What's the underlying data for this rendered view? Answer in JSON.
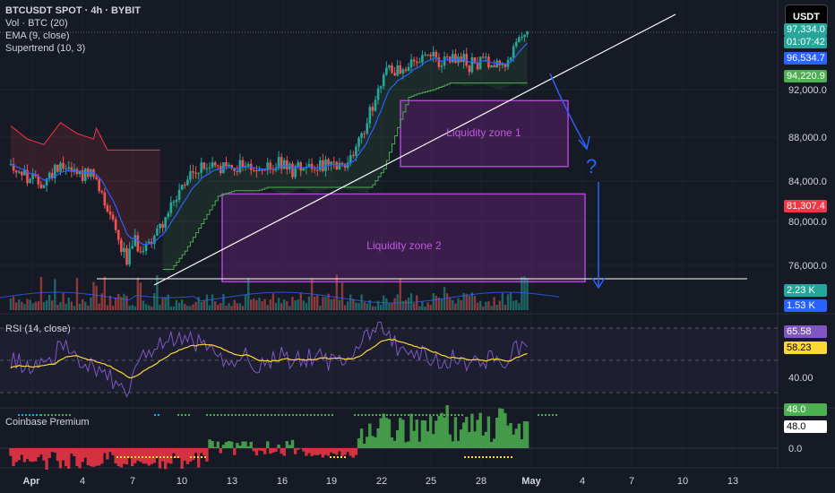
{
  "header": {
    "symbol": "BTCUSDT SPOT · 4h · BYBIT",
    "ind_vol": "Vol · BTC (20)",
    "ind_ema": "EMA (9, close)",
    "ind_supertrend": "Supertrend (10, 3)",
    "currency": "USDT"
  },
  "colors": {
    "up": "#26a69a",
    "down": "#ef5350",
    "ema": "#2962ff",
    "supertrend_up": "#4caf50",
    "supertrend_down": "#f23645",
    "zone": "#9c27b0",
    "rsi": "#7e57c2",
    "rsi_ma": "#fdd835",
    "arrow": "#2962ff"
  },
  "price_axis": {
    "ticks": [
      "92,000.0",
      "88,000.0",
      "84,000.0",
      "80,000.0",
      "76,000.0",
      "0"
    ],
    "tags": [
      {
        "text": "97,334.0",
        "bg": "#26a69a",
        "fg": "#ffffff"
      },
      {
        "text": "01:07:42",
        "bg": "#26a69a",
        "fg": "#ffffff"
      },
      {
        "text": "96,534.7",
        "bg": "#2962ff",
        "fg": "#ffffff"
      },
      {
        "text": "94,220.9",
        "bg": "#4caf50",
        "fg": "#ffffff"
      },
      {
        "text": "81,307.4",
        "bg": "#f23645",
        "fg": "#ffffff"
      },
      {
        "text": "2.23 K",
        "bg": "#26a69a",
        "fg": "#ffffff"
      },
      {
        "text": "1.53 K",
        "bg": "#2962ff",
        "fg": "#ffffff"
      }
    ]
  },
  "zones": {
    "zone1": "Liquidity zone 1",
    "zone2": "Liquidity zone 2",
    "question": "?"
  },
  "rsi": {
    "label": "RSI (14, close)",
    "tags": [
      {
        "text": "65.58",
        "bg": "#7e57c2",
        "fg": "#ffffff"
      },
      {
        "text": "58.23",
        "bg": "#fdd835",
        "fg": "#000000"
      }
    ],
    "tick": "40.00"
  },
  "cbp": {
    "label": "Coinbase Premium",
    "tags": [
      {
        "text": "48.0",
        "bg": "#4caf50",
        "fg": "#ffffff"
      },
      {
        "text": "48.0",
        "bg": "#ffffff",
        "fg": "#000000"
      }
    ],
    "tick": "0.0"
  },
  "time_axis": [
    "Apr",
    "4",
    "7",
    "10",
    "13",
    "16",
    "19",
    "22",
    "25",
    "28",
    "May",
    "4",
    "7",
    "10",
    "13"
  ],
  "chart_data": [
    {
      "type": "candlestick",
      "title": "BTCUSDT SPOT · 4h · BYBIT",
      "ylim": [
        72000,
        99000
      ],
      "x_dates": [
        "Apr 1",
        "Apr 4",
        "Apr 7",
        "Apr 10",
        "Apr 13",
        "Apr 16",
        "Apr 19",
        "Apr 22",
        "Apr 25",
        "Apr 28",
        "May 1",
        "May 2"
      ],
      "close_approx": [
        85000,
        84000,
        77500,
        81500,
        84500,
        85000,
        85000,
        93000,
        95000,
        94500,
        95500,
        97334
      ],
      "ema_last": 96534.7,
      "supertrend_last": 94220.9,
      "supertrend_resistance": 81307.4,
      "zones": [
        {
          "name": "Liquidity zone 1",
          "from": 85000,
          "to": 91000
        },
        {
          "name": "Liquidity zone 2",
          "from": 74500,
          "to": 82500
        }
      ]
    },
    {
      "type": "line",
      "title": "RSI (14, close)",
      "series": [
        {
          "name": "RSI",
          "last": 65.58
        },
        {
          "name": "MA",
          "last": 58.23
        }
      ]
    },
    {
      "type": "area",
      "title": "Coinbase Premium",
      "last": 48.0
    }
  ]
}
